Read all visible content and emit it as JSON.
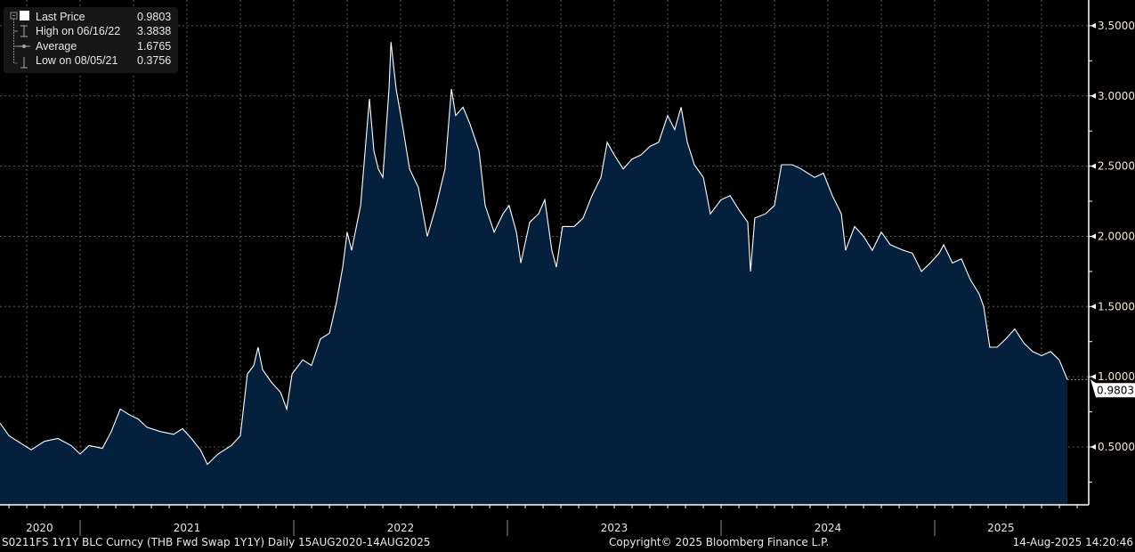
{
  "legend": {
    "items": [
      {
        "label": "Last Price",
        "value": "0.9803"
      },
      {
        "label": "High on 06/16/22",
        "value": "3.3838"
      },
      {
        "label": "Average",
        "value": "1.6765"
      },
      {
        "label": "Low on 08/05/21",
        "value": "0.3756"
      }
    ]
  },
  "footer": {
    "ticker": "S0211FS 1Y1Y BLC Curncy (THB Fwd Swap 1Y1Y)  Daily 15AUG2020-14AUG2025",
    "copyright": "Copyright© 2025 Bloomberg Finance L.P.",
    "timestamp": "14-Aug-2025 14:20:46"
  },
  "colors": {
    "area": "#05203d",
    "line": "#ffffff",
    "axis": "#ffffff",
    "grid": "#5a5a5a",
    "label": "#f2e6d2"
  },
  "chart_data": {
    "type": "area",
    "title": "S0211FS 1Y1Y BLC Curncy (THB Fwd Swap 1Y1Y)",
    "xlabel": "",
    "ylabel": "",
    "ylim": [
      0.25,
      3.6
    ],
    "xlim": [
      2020.625,
      2025.72
    ],
    "y_ticks": [
      0.5,
      1.0,
      1.5,
      2.0,
      2.5,
      3.0,
      3.5
    ],
    "y_tick_labels": [
      "0.5000",
      "1.0000",
      "1.5000",
      "2.0000",
      "2.5000",
      "3.0000",
      "3.5000"
    ],
    "x_tick_labels": [
      "2020",
      "2021",
      "2022",
      "2023",
      "2024",
      "2025"
    ],
    "last_price_label": "0.9803",
    "last_price": 0.9803,
    "grid": true,
    "legend_position": "top-left",
    "x": [
      2020.625,
      2020.667,
      2020.708,
      2020.771,
      2020.833,
      2020.896,
      2020.958,
      2021.0,
      2021.042,
      2021.104,
      2021.146,
      2021.188,
      2021.229,
      2021.271,
      2021.313,
      2021.375,
      2021.438,
      2021.479,
      2021.521,
      2021.563,
      2021.596,
      2021.646,
      2021.708,
      2021.75,
      2021.783,
      2021.813,
      2021.833,
      2021.854,
      2021.896,
      2021.938,
      2021.967,
      2021.992,
      2022.042,
      2022.083,
      2022.125,
      2022.167,
      2022.2,
      2022.229,
      2022.25,
      2022.271,
      2022.313,
      2022.354,
      2022.375,
      2022.396,
      2022.417,
      2022.446,
      2022.455,
      2022.479,
      2022.508,
      2022.542,
      2022.583,
      2022.625,
      2022.667,
      2022.708,
      2022.738,
      2022.758,
      2022.792,
      2022.825,
      2022.867,
      2022.896,
      2022.938,
      2022.979,
      2023.008,
      2023.042,
      2023.063,
      2023.104,
      2023.146,
      2023.175,
      2023.208,
      2023.229,
      2023.258,
      2023.313,
      2023.354,
      2023.396,
      2023.438,
      2023.467,
      2023.5,
      2023.542,
      2023.583,
      2023.625,
      2023.667,
      2023.708,
      2023.75,
      2023.783,
      2023.813,
      2023.842,
      2023.875,
      2023.917,
      2023.95,
      2024.0,
      2024.042,
      2024.083,
      2024.125,
      2024.138,
      2024.158,
      2024.208,
      2024.25,
      2024.283,
      2024.333,
      2024.375,
      2024.438,
      2024.479,
      2024.521,
      2024.563,
      2024.583,
      2024.625,
      2024.667,
      2024.708,
      2024.75,
      2024.792,
      2024.854,
      2024.896,
      2024.938,
      2024.979,
      2025.021,
      2025.042,
      2025.083,
      2025.125,
      2025.167,
      2025.208,
      2025.229,
      2025.258,
      2025.292,
      2025.333,
      2025.375,
      2025.417,
      2025.458,
      2025.5,
      2025.542,
      2025.583,
      2025.621
    ],
    "values": [
      0.67,
      0.58,
      0.54,
      0.48,
      0.54,
      0.56,
      0.51,
      0.45,
      0.51,
      0.49,
      0.61,
      0.77,
      0.73,
      0.7,
      0.64,
      0.61,
      0.59,
      0.63,
      0.56,
      0.48,
      0.3756,
      0.45,
      0.51,
      0.58,
      1.02,
      1.08,
      1.21,
      1.05,
      0.96,
      0.89,
      0.77,
      1.02,
      1.12,
      1.08,
      1.27,
      1.31,
      1.53,
      1.78,
      2.03,
      1.9,
      2.22,
      2.98,
      2.61,
      2.48,
      2.42,
      3.05,
      3.3838,
      3.05,
      2.8,
      2.48,
      2.35,
      2.0,
      2.22,
      2.48,
      3.05,
      2.86,
      2.92,
      2.8,
      2.61,
      2.22,
      2.03,
      2.16,
      2.22,
      2.03,
      1.81,
      2.1,
      2.16,
      2.26,
      1.9,
      1.78,
      2.07,
      2.07,
      2.13,
      2.29,
      2.42,
      2.67,
      2.58,
      2.48,
      2.55,
      2.58,
      2.64,
      2.67,
      2.86,
      2.76,
      2.92,
      2.67,
      2.51,
      2.42,
      2.16,
      2.26,
      2.29,
      2.19,
      2.1,
      1.75,
      2.13,
      2.16,
      2.22,
      2.51,
      2.51,
      2.48,
      2.42,
      2.45,
      2.29,
      2.16,
      1.9,
      2.07,
      2.0,
      1.9,
      2.03,
      1.94,
      1.9,
      1.88,
      1.75,
      1.81,
      1.88,
      1.94,
      1.81,
      1.84,
      1.69,
      1.59,
      1.5,
      1.21,
      1.21,
      1.27,
      1.34,
      1.24,
      1.18,
      1.15,
      1.18,
      1.12,
      0.9803
    ]
  }
}
